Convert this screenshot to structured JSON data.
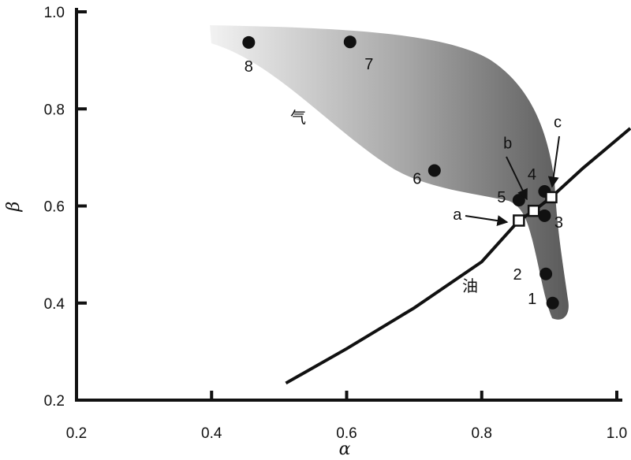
{
  "chart_data": {
    "type": "scatter",
    "xlabel": "α",
    "ylabel": "β",
    "xlim": [
      0.2,
      1.0
    ],
    "ylim": [
      0.2,
      1.0
    ],
    "x_ticks": [
      "0.2",
      "0.4",
      "0.6",
      "0.8",
      "1.0"
    ],
    "y_ticks": [
      "0.2",
      "0.4",
      "0.6",
      "0.8",
      "1.0"
    ],
    "grid": false,
    "points": [
      {
        "label": "1",
        "x": 0.905,
        "y": 0.4
      },
      {
        "label": "2",
        "x": 0.895,
        "y": 0.46
      },
      {
        "label": "3",
        "x": 0.893,
        "y": 0.58
      },
      {
        "label": "4",
        "x": 0.893,
        "y": 0.63
      },
      {
        "label": "5",
        "x": 0.855,
        "y": 0.612
      },
      {
        "label": "6",
        "x": 0.73,
        "y": 0.673
      },
      {
        "label": "7",
        "x": 0.605,
        "y": 0.938
      },
      {
        "label": "8",
        "x": 0.455,
        "y": 0.937
      }
    ],
    "markers": [
      {
        "label": "a",
        "x": 0.855,
        "y": 0.57
      },
      {
        "label": "b",
        "x": 0.877,
        "y": 0.59
      },
      {
        "label": "c",
        "x": 0.903,
        "y": 0.618
      }
    ],
    "boundary_line": {
      "x": [
        0.51,
        0.6,
        0.7,
        0.8,
        0.855,
        0.877,
        0.903,
        0.95,
        1.02
      ],
      "y": [
        0.235,
        0.306,
        0.39,
        0.485,
        0.57,
        0.59,
        0.618,
        0.678,
        0.76
      ]
    },
    "region_labels": {
      "gas": "气",
      "oil": "油"
    }
  }
}
